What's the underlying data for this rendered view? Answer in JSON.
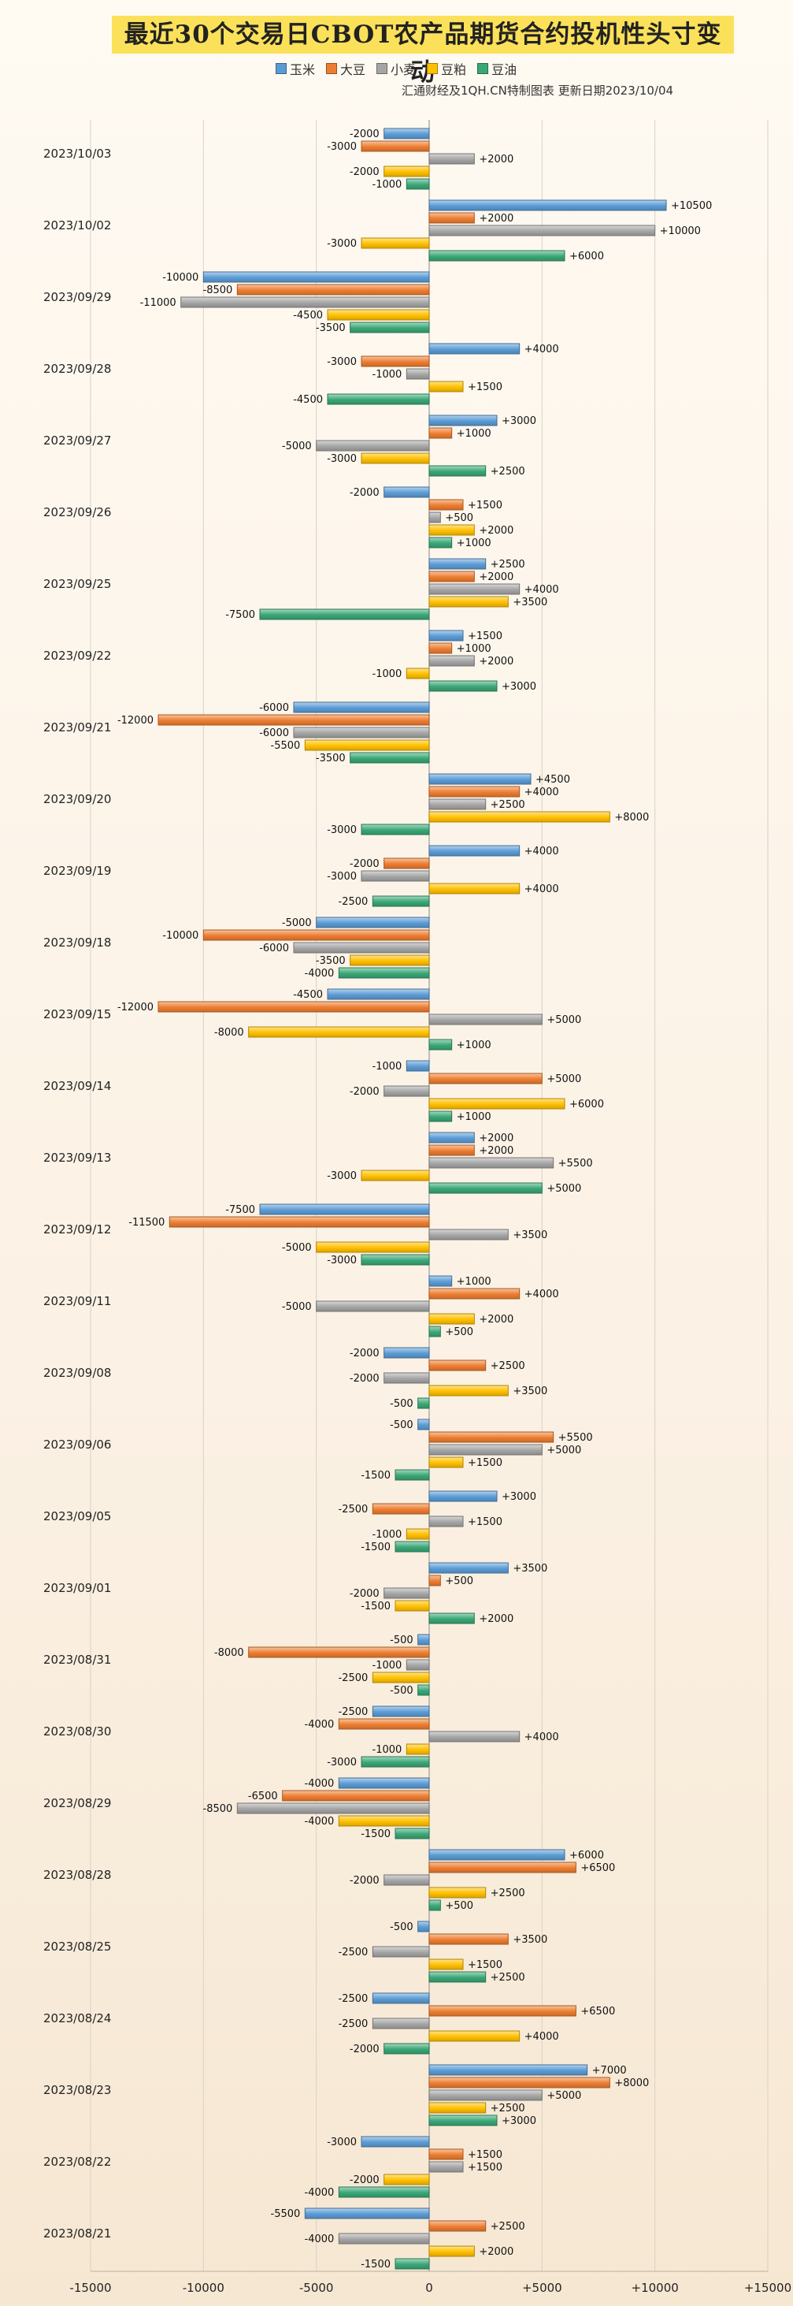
{
  "header": {
    "title": "最近30个交易日CBOT农产品期货合约投机性头寸变动",
    "source": "汇通财经及1QH.CN特制图表 更新日期2023/10/04"
  },
  "chart_data": {
    "type": "bar",
    "orientation": "horizontal",
    "title": "最近30个交易日CBOT农产品期货合约投机性头寸变动",
    "xlim": [
      -15000,
      15000
    ],
    "x_ticks": [
      {
        "v": -15000,
        "label": "-15000"
      },
      {
        "v": -10000,
        "label": "-10000"
      },
      {
        "v": -5000,
        "label": "-5000"
      },
      {
        "v": 0,
        "label": "0"
      },
      {
        "v": 5000,
        "label": "+5000"
      },
      {
        "v": 10000,
        "label": "+10000"
      },
      {
        "v": 15000,
        "label": "+15000"
      }
    ],
    "legend_position": "top",
    "categories": [
      "2023/10/03",
      "2023/10/02",
      "2023/09/29",
      "2023/09/28",
      "2023/09/27",
      "2023/09/26",
      "2023/09/25",
      "2023/09/22",
      "2023/09/21",
      "2023/09/20",
      "2023/09/19",
      "2023/09/18",
      "2023/09/15",
      "2023/09/14",
      "2023/09/13",
      "2023/09/12",
      "2023/09/11",
      "2023/09/08",
      "2023/09/06",
      "2023/09/05",
      "2023/09/01",
      "2023/08/31",
      "2023/08/30",
      "2023/08/29",
      "2023/08/28",
      "2023/08/25",
      "2023/08/24",
      "2023/08/23",
      "2023/08/22",
      "2023/08/21"
    ],
    "series": [
      {
        "name": "玉米",
        "color": "#5b9bd5",
        "values": [
          -2000,
          10500,
          -10000,
          4000,
          3000,
          -2000,
          2500,
          1500,
          -6000,
          4500,
          4000,
          -5000,
          -4500,
          -1000,
          2000,
          -7500,
          1000,
          -2000,
          -500,
          3000,
          3500,
          -500,
          -2500,
          -4000,
          6000,
          -500,
          -2500,
          7000,
          -3000,
          -5500
        ]
      },
      {
        "name": "大豆",
        "color": "#ed7d31",
        "values": [
          -3000,
          2000,
          -8500,
          -3000,
          1000,
          1500,
          2000,
          1000,
          -12000,
          4000,
          -2000,
          -10000,
          -12000,
          5000,
          2000,
          -11500,
          4000,
          2500,
          5500,
          -2500,
          500,
          -8000,
          -4000,
          -6500,
          6500,
          3500,
          6500,
          8000,
          1500,
          2500
        ]
      },
      {
        "name": "小麦",
        "color": "#a5a5a5",
        "values": [
          2000,
          10000,
          -11000,
          -1000,
          -5000,
          500,
          4000,
          2000,
          -6000,
          2500,
          -3000,
          -6000,
          5000,
          -2000,
          5500,
          3500,
          -5000,
          -2000,
          5000,
          1500,
          -2000,
          -1000,
          4000,
          -8500,
          -2000,
          -2500,
          -2500,
          5000,
          1500,
          -4000
        ]
      },
      {
        "name": "豆粕",
        "color": "#ffc000",
        "values": [
          -2000,
          -3000,
          -4500,
          1500,
          -3000,
          2000,
          3500,
          -1000,
          -5500,
          8000,
          4000,
          -3500,
          -8000,
          6000,
          -3000,
          -5000,
          2000,
          3500,
          1500,
          -1000,
          -1500,
          -2500,
          -1000,
          -4000,
          2500,
          1500,
          4000,
          2500,
          -2000,
          2000
        ]
      },
      {
        "name": "豆油",
        "color": "#3aa776",
        "values": [
          -1000,
          6000,
          -3500,
          -4500,
          2500,
          1000,
          -7500,
          3000,
          -3500,
          -3000,
          -2500,
          -4000,
          1000,
          1000,
          5000,
          -3000,
          500,
          -500,
          -1500,
          -1500,
          2000,
          -500,
          -3000,
          -1500,
          500,
          2500,
          -2000,
          3000,
          -4000,
          -1500
        ]
      }
    ]
  }
}
